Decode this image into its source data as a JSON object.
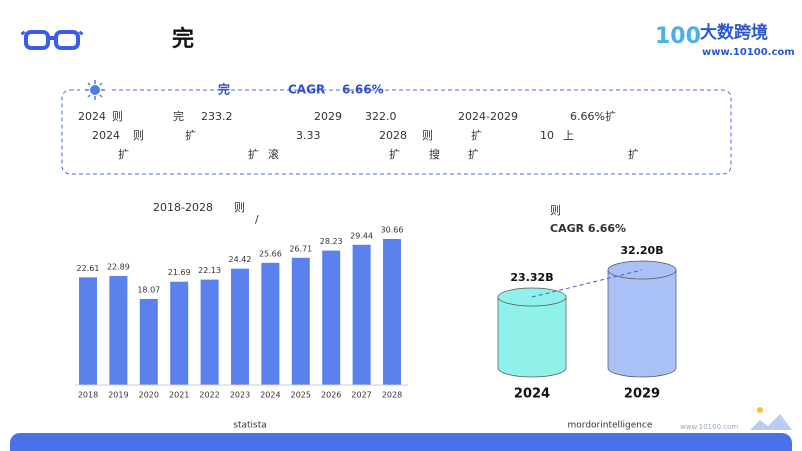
{
  "header": {
    "title": "完",
    "brand": "大数跨境",
    "url": "www.10100.com"
  },
  "summary": {
    "heading": [
      "完",
      "CAGR",
      "6.66%"
    ],
    "lines": [
      [
        "2024",
        "则",
        "完",
        "233.2",
        "2029",
        "322.0",
        "2024-2029",
        "6.66%扩"
      ],
      [
        "2024",
        "则",
        "扩",
        "3.33",
        "2028",
        "则",
        "扩",
        "10",
        "上"
      ],
      [
        "扩",
        "扩",
        "滚",
        "扩",
        "搜",
        "扩",
        "扩"
      ]
    ]
  },
  "chart_data": [
    {
      "type": "bar",
      "title": "2018-2028",
      "title_suffix": "则",
      "subtitle": "/",
      "source": "statista",
      "color": "#5b82ec",
      "categories": [
        "2018",
        "2019",
        "2020",
        "2021",
        "2022",
        "2023",
        "2024",
        "2025",
        "2026",
        "2027",
        "2028"
      ],
      "values": [
        22.61,
        22.89,
        18.07,
        21.69,
        22.13,
        24.42,
        25.66,
        26.71,
        28.23,
        29.44,
        30.66
      ]
    },
    {
      "type": "cylinder",
      "title": "则",
      "subtitle": "CAGR  6.66%",
      "source": "mordorintelligence",
      "categories": [
        "2024",
        "2029"
      ],
      "values": [
        23.32,
        32.2
      ],
      "value_labels": [
        "23.32B",
        "32.20B"
      ],
      "colors": [
        "#90f0ea",
        "#aac1f6"
      ]
    }
  ]
}
